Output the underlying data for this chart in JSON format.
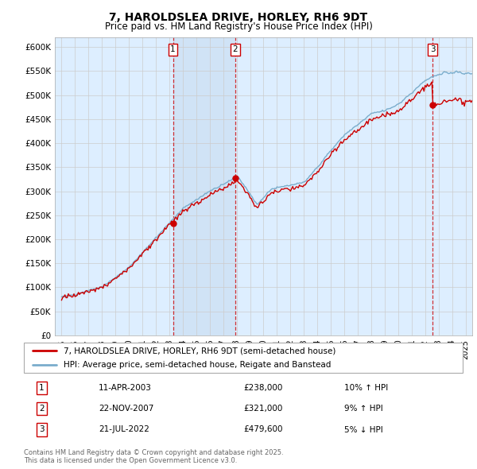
{
  "title": "7, HAROLDSLEA DRIVE, HORLEY, RH6 9DT",
  "subtitle": "Price paid vs. HM Land Registry's House Price Index (HPI)",
  "legend_line1": "7, HAROLDSLEA DRIVE, HORLEY, RH6 9DT (semi-detached house)",
  "legend_line2": "HPI: Average price, semi-detached house, Reigate and Banstead",
  "footer": "Contains HM Land Registry data © Crown copyright and database right 2025.\nThis data is licensed under the Open Government Licence v3.0.",
  "sale_dates": [
    2003.27,
    2007.89,
    2022.55
  ],
  "sale_prices": [
    238000,
    321000,
    479600
  ],
  "sale_labels": [
    "1",
    "2",
    "3"
  ],
  "sale_date_strs": [
    "11-APR-2003",
    "22-NOV-2007",
    "21-JUL-2022"
  ],
  "sale_price_strs": [
    "£238,000",
    "£321,000",
    "£479,600"
  ],
  "sale_hpi_strs": [
    "10% ↑ HPI",
    "9% ↑ HPI",
    "5% ↓ HPI"
  ],
  "ylim": [
    0,
    620000
  ],
  "yticks": [
    0,
    50000,
    100000,
    150000,
    200000,
    250000,
    300000,
    350000,
    400000,
    450000,
    500000,
    550000,
    600000
  ],
  "ytick_labels": [
    "£0",
    "£50K",
    "£100K",
    "£150K",
    "£200K",
    "£250K",
    "£300K",
    "£350K",
    "£400K",
    "£450K",
    "£500K",
    "£550K",
    "£600K"
  ],
  "xlim_start": 1994.5,
  "xlim_end": 2025.5,
  "red_color": "#cc0000",
  "blue_color": "#7aadcc",
  "shade_color": "#ddeeff",
  "bg_color": "#ddeeff",
  "grid_color": "#cccccc",
  "white": "#ffffff"
}
